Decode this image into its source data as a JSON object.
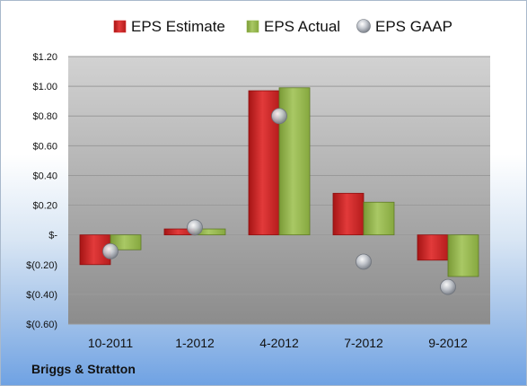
{
  "company": "Briggs & Stratton",
  "colors": {
    "estimate": "#d42a2a",
    "actual": "#96b84e",
    "gaap": "#b8bcc4"
  },
  "chart_data": {
    "type": "bar",
    "categories": [
      "10-2011",
      "1-2012",
      "4-2012",
      "7-2012",
      "9-2012"
    ],
    "series": [
      {
        "name": "EPS Estimate",
        "kind": "bar",
        "values": [
          -0.2,
          0.04,
          0.97,
          0.28,
          -0.17
        ]
      },
      {
        "name": "EPS Actual",
        "kind": "bar",
        "values": [
          -0.1,
          0.04,
          0.99,
          0.22,
          -0.28
        ]
      },
      {
        "name": "EPS GAAP",
        "kind": "marker",
        "values": [
          -0.11,
          0.05,
          0.8,
          -0.18,
          -0.35
        ]
      }
    ],
    "ylim": [
      -0.6,
      1.2
    ],
    "yticks": [
      1.2,
      1.0,
      0.8,
      0.6,
      0.4,
      0.2,
      0.0,
      -0.2,
      -0.4,
      -0.6
    ],
    "ytick_labels": [
      "$1.20",
      "$1.00",
      "$0.80",
      "$0.60",
      "$0.40",
      "$0.20",
      "$-",
      "$(0.20)",
      "$(0.40)",
      "$(0.60)"
    ],
    "legend": "top",
    "grid": true
  }
}
